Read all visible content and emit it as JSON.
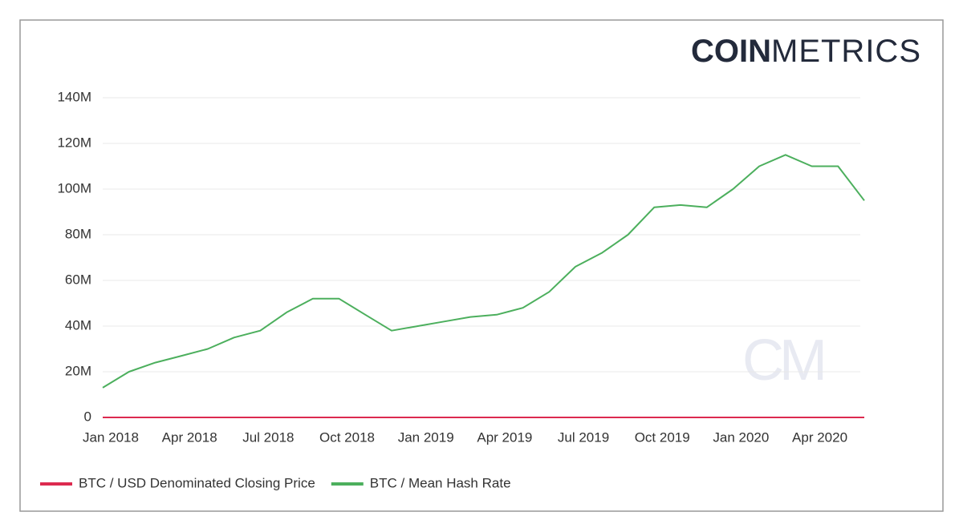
{
  "chart_data": {
    "type": "line",
    "brand": {
      "bold": "COIN",
      "light": "METRICS"
    },
    "watermark": "CM",
    "x": [
      "2018-01",
      "2018-02",
      "2018-03",
      "2018-04",
      "2018-05",
      "2018-06",
      "2018-07",
      "2018-08",
      "2018-09",
      "2018-10",
      "2018-11",
      "2018-12",
      "2019-01",
      "2019-02",
      "2019-03",
      "2019-04",
      "2019-05",
      "2019-06",
      "2019-07",
      "2019-08",
      "2019-09",
      "2019-10",
      "2019-11",
      "2019-12",
      "2020-01",
      "2020-02",
      "2020-03",
      "2020-04",
      "2020-05",
      "2020-06"
    ],
    "series": [
      {
        "name": "BTC / USD Denominated Closing Price",
        "color": "#dc2a4f",
        "values": [
          13500,
          9000,
          10300,
          7000,
          9200,
          7500,
          6400,
          7700,
          7000,
          6600,
          6300,
          3800,
          3700,
          3450,
          3850,
          4100,
          5300,
          8600,
          11000,
          10100,
          9600,
          8300,
          9100,
          7500,
          7200,
          9400,
          8600,
          6400,
          8800,
          9500
        ]
      },
      {
        "name": "BTC / Mean Hash Rate",
        "color": "#4caf5d",
        "values": [
          13000000,
          20000000,
          24000000,
          27000000,
          30000000,
          35000000,
          38000000,
          46000000,
          52000000,
          52000000,
          45000000,
          38000000,
          40000000,
          42000000,
          44000000,
          45000000,
          48000000,
          55000000,
          66000000,
          72000000,
          80000000,
          92000000,
          93000000,
          92000000,
          100000000,
          110000000,
          115000000,
          110000000,
          110000000,
          95000000
        ]
      }
    ],
    "xlim": [
      "2018-01",
      "2020-06"
    ],
    "xticks": [
      {
        "value": "2018-01",
        "label": "Jan 2018"
      },
      {
        "value": "2018-04",
        "label": "Apr 2018"
      },
      {
        "value": "2018-07",
        "label": "Jul 2018"
      },
      {
        "value": "2018-10",
        "label": "Oct 2018"
      },
      {
        "value": "2019-01",
        "label": "Jan 2019"
      },
      {
        "value": "2019-04",
        "label": "Apr 2019"
      },
      {
        "value": "2019-07",
        "label": "Jul 2019"
      },
      {
        "value": "2019-10",
        "label": "Oct 2019"
      },
      {
        "value": "2020-01",
        "label": "Jan 2020"
      },
      {
        "value": "2020-04",
        "label": "Apr 2020"
      }
    ],
    "ylim": [
      0,
      140000000
    ],
    "yticks": [
      0,
      {
        "value": 20000000,
        "label": "20M"
      },
      {
        "value": 40000000,
        "label": "40M"
      },
      {
        "value": 60000000,
        "label": "60M"
      },
      {
        "value": 80000000,
        "label": "80M"
      },
      {
        "value": 100000000,
        "label": "100M"
      },
      {
        "value": 120000000,
        "label": "120M"
      },
      {
        "value": 140000000,
        "label": "140M"
      }
    ],
    "grid": true,
    "legend": "bottom"
  }
}
